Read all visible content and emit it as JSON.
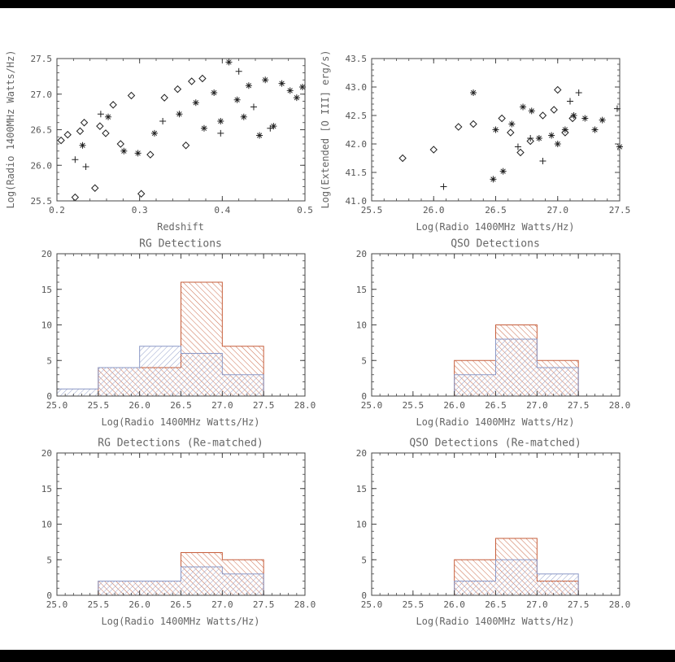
{
  "page": {
    "background": "#ffffff",
    "top_bar_color": "#000000",
    "bottom_bar_color": "#000000"
  },
  "colors": {
    "axis": "#444444",
    "text": "#666666",
    "marker": "#222222",
    "orange": "#c65d3a",
    "blue": "#8a97c5"
  },
  "chart_data": [
    {
      "id": "scatter-redshift-radio",
      "type": "scatter",
      "xlabel": "Redshift",
      "ylabel": "Log(Radio 1400MHz Watts/Hz)",
      "xlim": [
        0.2,
        0.5
      ],
      "ylim": [
        25.5,
        27.5
      ],
      "xticks": [
        0.2,
        0.3,
        0.4,
        0.5
      ],
      "xtick_labels": [
        "0.2",
        "0.3",
        "0.4",
        "0.5"
      ],
      "yticks": [
        25.5,
        26.0,
        26.5,
        27.0,
        27.5
      ],
      "ytick_labels": [
        "25.5",
        "26.0",
        "26.5",
        "27.0",
        "27.5"
      ],
      "xminor": 0.02,
      "yminor": 0.1,
      "series": [
        {
          "name": "diamonds",
          "marker": "diamond",
          "points": [
            [
              0.205,
              26.35
            ],
            [
              0.213,
              26.43
            ],
            [
              0.222,
              25.55
            ],
            [
              0.228,
              26.48
            ],
            [
              0.233,
              26.6
            ],
            [
              0.246,
              25.68
            ],
            [
              0.252,
              26.55
            ],
            [
              0.259,
              26.45
            ],
            [
              0.268,
              26.85
            ],
            [
              0.277,
              26.3
            ],
            [
              0.29,
              26.98
            ],
            [
              0.302,
              25.6
            ],
            [
              0.313,
              26.15
            ],
            [
              0.33,
              26.95
            ],
            [
              0.346,
              27.07
            ],
            [
              0.356,
              26.28
            ],
            [
              0.363,
              27.18
            ],
            [
              0.376,
              27.22
            ]
          ]
        },
        {
          "name": "plus",
          "marker": "plus",
          "points": [
            [
              0.222,
              26.08
            ],
            [
              0.235,
              25.98
            ],
            [
              0.253,
              26.72
            ],
            [
              0.328,
              26.62
            ],
            [
              0.398,
              26.45
            ],
            [
              0.42,
              27.32
            ],
            [
              0.438,
              26.82
            ],
            [
              0.458,
              26.52
            ]
          ]
        },
        {
          "name": "asterisks",
          "marker": "asterisk",
          "points": [
            [
              0.231,
              26.28
            ],
            [
              0.262,
              26.68
            ],
            [
              0.281,
              26.2
            ],
            [
              0.298,
              26.17
            ],
            [
              0.318,
              26.45
            ],
            [
              0.348,
              26.72
            ],
            [
              0.368,
              26.88
            ],
            [
              0.378,
              26.52
            ],
            [
              0.39,
              27.02
            ],
            [
              0.398,
              26.62
            ],
            [
              0.408,
              27.45
            ],
            [
              0.418,
              26.92
            ],
            [
              0.426,
              26.68
            ],
            [
              0.432,
              27.12
            ],
            [
              0.445,
              26.42
            ],
            [
              0.452,
              27.2
            ],
            [
              0.462,
              26.55
            ],
            [
              0.472,
              27.15
            ],
            [
              0.482,
              27.05
            ],
            [
              0.49,
              26.95
            ],
            [
              0.497,
              27.1
            ]
          ]
        }
      ]
    },
    {
      "id": "scatter-radio-oiii",
      "type": "scatter",
      "xlabel": "Log(Radio 1400MHz Watts/Hz)",
      "ylabel": "Log(Extended [O III] erg/s)",
      "xlim": [
        25.5,
        27.5
      ],
      "ylim": [
        41.0,
        43.5
      ],
      "xticks": [
        25.5,
        26.0,
        26.5,
        27.0,
        27.5
      ],
      "xtick_labels": [
        "25.5",
        "26.0",
        "26.5",
        "27.0",
        "27.5"
      ],
      "yticks": [
        41.0,
        41.5,
        42.0,
        42.5,
        43.0,
        43.5
      ],
      "ytick_labels": [
        "41.0",
        "41.5",
        "42.0",
        "42.5",
        "43.0",
        "43.5"
      ],
      "xminor": 0.1,
      "yminor": 0.1,
      "series": [
        {
          "name": "diamonds",
          "marker": "diamond",
          "points": [
            [
              25.75,
              41.75
            ],
            [
              26.0,
              41.9
            ],
            [
              26.2,
              42.3
            ],
            [
              26.32,
              42.35
            ],
            [
              26.55,
              42.45
            ],
            [
              26.62,
              42.2
            ],
            [
              26.7,
              41.85
            ],
            [
              26.78,
              42.05
            ],
            [
              26.88,
              42.5
            ],
            [
              26.97,
              42.6
            ],
            [
              27.0,
              42.95
            ],
            [
              27.06,
              42.2
            ],
            [
              27.12,
              42.45
            ]
          ]
        },
        {
          "name": "plus",
          "marker": "plus",
          "points": [
            [
              26.08,
              41.25
            ],
            [
              26.68,
              41.95
            ],
            [
              26.78,
              42.1
            ],
            [
              26.88,
              41.7
            ],
            [
              27.1,
              42.75
            ],
            [
              27.17,
              42.9
            ],
            [
              27.48,
              42.62
            ]
          ]
        },
        {
          "name": "asterisks",
          "marker": "asterisk",
          "points": [
            [
              26.32,
              42.9
            ],
            [
              26.48,
              41.38
            ],
            [
              26.5,
              42.25
            ],
            [
              26.56,
              41.52
            ],
            [
              26.63,
              42.35
            ],
            [
              26.72,
              42.65
            ],
            [
              26.79,
              42.58
            ],
            [
              26.85,
              42.1
            ],
            [
              26.95,
              42.15
            ],
            [
              27.0,
              42.0
            ],
            [
              27.06,
              42.25
            ],
            [
              27.13,
              42.5
            ],
            [
              27.22,
              42.45
            ],
            [
              27.3,
              42.25
            ],
            [
              27.36,
              42.42
            ],
            [
              27.5,
              41.95
            ]
          ]
        }
      ]
    },
    {
      "id": "hist-rg-detections",
      "type": "histogram",
      "title": "RG Detections",
      "xlabel": "Log(Radio 1400MHz Watts/Hz)",
      "xlim": [
        25.0,
        28.0
      ],
      "ylim": [
        0,
        20
      ],
      "xticks": [
        25.0,
        25.5,
        26.0,
        26.5,
        27.0,
        27.5,
        28.0
      ],
      "xtick_labels": [
        "25.0",
        "25.5",
        "26.0",
        "26.5",
        "27.0",
        "27.5",
        "28.0"
      ],
      "yticks": [
        0,
        5,
        10,
        15,
        20
      ],
      "ytick_labels": [
        "0",
        "5",
        "10",
        "15",
        "20"
      ],
      "xminor": 0.1,
      "yminor": 1,
      "bin_edges": [
        25.0,
        25.5,
        26.0,
        26.5,
        27.0,
        27.5,
        28.0
      ],
      "series": [
        {
          "name": "orange-hatched",
          "color": "orange",
          "hatch": "/",
          "values": [
            0,
            4,
            4,
            16,
            7,
            0
          ]
        },
        {
          "name": "blue-hatched",
          "color": "blue",
          "hatch": "\\",
          "values": [
            1,
            4,
            7,
            6,
            3,
            0
          ]
        }
      ]
    },
    {
      "id": "hist-qso-detections",
      "type": "histogram",
      "title": "QSO Detections",
      "xlabel": "Log(Radio 1400MHz Watts/Hz)",
      "xlim": [
        25.0,
        28.0
      ],
      "ylim": [
        0,
        20
      ],
      "xticks": [
        25.0,
        25.5,
        26.0,
        26.5,
        27.0,
        27.5,
        28.0
      ],
      "xtick_labels": [
        "25.0",
        "25.5",
        "26.0",
        "26.5",
        "27.0",
        "27.5",
        "28.0"
      ],
      "yticks": [
        0,
        5,
        10,
        15,
        20
      ],
      "ytick_labels": [
        "0",
        "5",
        "10",
        "15",
        "20"
      ],
      "xminor": 0.1,
      "yminor": 1,
      "bin_edges": [
        25.0,
        25.5,
        26.0,
        26.5,
        27.0,
        27.5,
        28.0
      ],
      "series": [
        {
          "name": "orange-hatched",
          "color": "orange",
          "hatch": "/",
          "values": [
            0,
            0,
            5,
            10,
            5,
            0
          ]
        },
        {
          "name": "blue-hatched",
          "color": "blue",
          "hatch": "\\",
          "values": [
            0,
            0,
            3,
            8,
            4,
            0
          ]
        }
      ]
    },
    {
      "id": "hist-rg-rematched",
      "type": "histogram",
      "title": "RG Detections (Re-matched)",
      "xlabel": "Log(Radio 1400MHz Watts/Hz)",
      "xlim": [
        25.0,
        28.0
      ],
      "ylim": [
        0,
        20
      ],
      "xticks": [
        25.0,
        25.5,
        26.0,
        26.5,
        27.0,
        27.5,
        28.0
      ],
      "xtick_labels": [
        "25.0",
        "25.5",
        "26.0",
        "26.5",
        "27.0",
        "27.5",
        "28.0"
      ],
      "yticks": [
        0,
        5,
        10,
        15,
        20
      ],
      "ytick_labels": [
        "0",
        "5",
        "10",
        "15",
        "20"
      ],
      "xminor": 0.1,
      "yminor": 1,
      "bin_edges": [
        25.0,
        25.5,
        26.0,
        26.5,
        27.0,
        27.5,
        28.0
      ],
      "series": [
        {
          "name": "orange-hatched",
          "color": "orange",
          "hatch": "/",
          "values": [
            0,
            2,
            2,
            6,
            5,
            0
          ]
        },
        {
          "name": "blue-hatched",
          "color": "blue",
          "hatch": "\\",
          "values": [
            0,
            2,
            2,
            4,
            3,
            0
          ]
        }
      ]
    },
    {
      "id": "hist-qso-rematched",
      "type": "histogram",
      "title": "QSO Detections (Re-matched)",
      "xlabel": "Log(Radio 1400MHz Watts/Hz)",
      "xlim": [
        25.0,
        28.0
      ],
      "ylim": [
        0,
        20
      ],
      "xticks": [
        25.0,
        25.5,
        26.0,
        26.5,
        27.0,
        27.5,
        28.0
      ],
      "xtick_labels": [
        "25.0",
        "25.5",
        "26.0",
        "26.5",
        "27.0",
        "27.5",
        "28.0"
      ],
      "yticks": [
        0,
        5,
        10,
        15,
        20
      ],
      "ytick_labels": [
        "0",
        "5",
        "10",
        "15",
        "20"
      ],
      "xminor": 0.1,
      "yminor": 1,
      "bin_edges": [
        25.0,
        25.5,
        26.0,
        26.5,
        27.0,
        27.5,
        28.0
      ],
      "series": [
        {
          "name": "orange-hatched",
          "color": "orange",
          "hatch": "/",
          "values": [
            0,
            0,
            5,
            8,
            2,
            0
          ]
        },
        {
          "name": "blue-hatched",
          "color": "blue",
          "hatch": "\\",
          "values": [
            0,
            0,
            2,
            5,
            3,
            0
          ]
        }
      ]
    }
  ]
}
